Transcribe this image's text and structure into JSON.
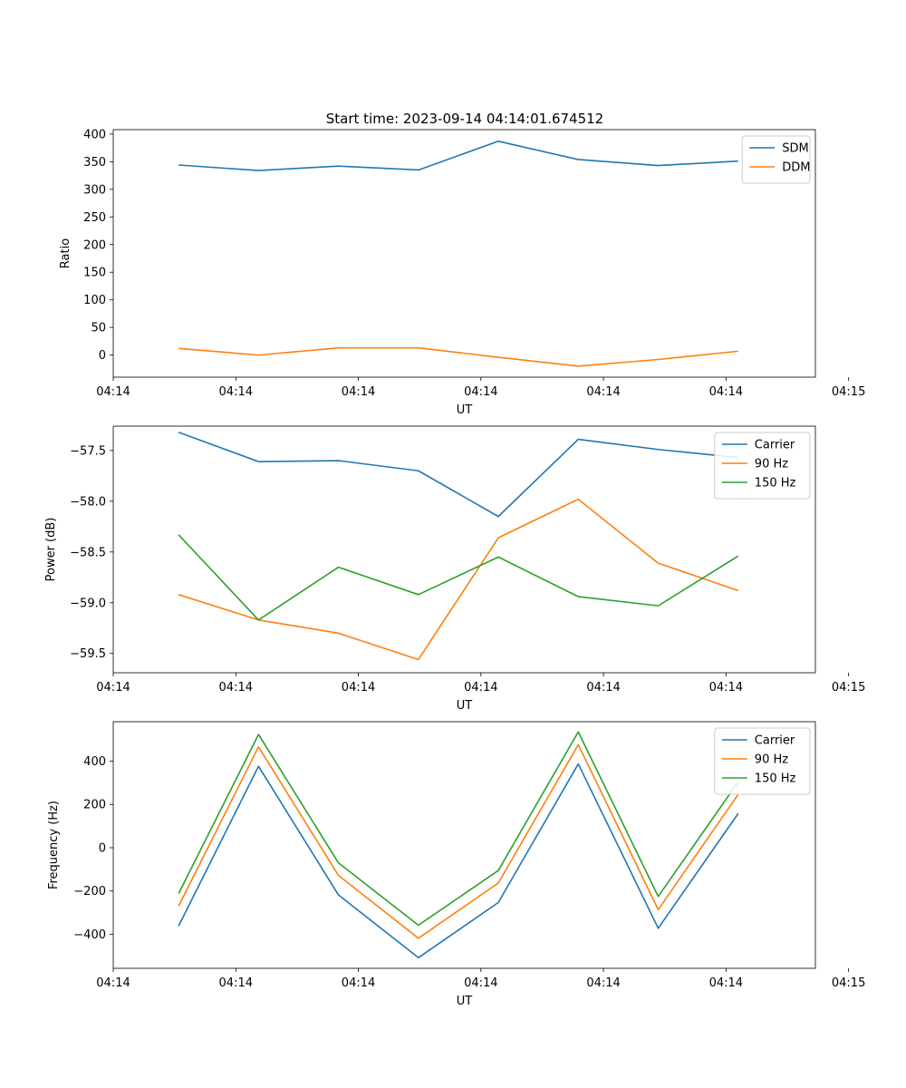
{
  "figure": {
    "title": "Start time: 2023-09-14 04:14:01.674512"
  },
  "colors": {
    "blue": "#1f77b4",
    "orange": "#ff7f0e",
    "green": "#2ca02c"
  },
  "chart_data": [
    {
      "type": "line",
      "title": "Start time: 2023-09-14 04:14:01.674512",
      "xlabel": "UT",
      "ylabel": "Ratio",
      "x": [
        1,
        2,
        3,
        4,
        5,
        6,
        7,
        8
      ],
      "xlim": [
        0.183,
        8.966
      ],
      "xticks": [
        0.183,
        1.716,
        3.249,
        4.782,
        6.315,
        7.848,
        9.381
      ],
      "xticklabels": [
        "04:14",
        "04:14",
        "04:14",
        "04:14",
        "04:14",
        "04:14",
        "04:15"
      ],
      "ylim": [
        -40,
        408
      ],
      "yticks": [
        0,
        50,
        100,
        150,
        200,
        250,
        300,
        350,
        400
      ],
      "yticklabels": [
        "0",
        "50",
        "100",
        "150",
        "200",
        "250",
        "300",
        "350",
        "400"
      ],
      "legend": "top-right",
      "series": [
        {
          "name": "SDM",
          "color": "#1f77b4",
          "values": [
            344,
            334,
            342,
            335,
            387,
            354,
            343,
            351
          ]
        },
        {
          "name": "DDM",
          "color": "#ff7f0e",
          "values": [
            12,
            0,
            13,
            13,
            -4,
            -20,
            -8,
            7
          ]
        }
      ]
    },
    {
      "type": "line",
      "xlabel": "UT",
      "ylabel": "Power (dB)",
      "x": [
        1,
        2,
        3,
        4,
        5,
        6,
        7,
        8
      ],
      "xlim": [
        0.183,
        8.966
      ],
      "xticks": [
        0.183,
        1.716,
        3.249,
        4.782,
        6.315,
        7.848,
        9.381
      ],
      "xticklabels": [
        "04:14",
        "04:14",
        "04:14",
        "04:14",
        "04:14",
        "04:14",
        "04:15"
      ],
      "ylim": [
        -59.69,
        -57.26
      ],
      "yticks": [
        -59.5,
        -59.0,
        -58.5,
        -58.0,
        -57.5
      ],
      "yticklabels": [
        "−59.5",
        "−59.0",
        "−58.5",
        "−58.0",
        "−57.5"
      ],
      "legend": "top-right",
      "series": [
        {
          "name": "Carrier",
          "color": "#1f77b4",
          "values": [
            -57.32,
            -57.61,
            -57.6,
            -57.7,
            -58.15,
            -57.39,
            -57.49,
            -57.57
          ]
        },
        {
          "name": "90 Hz",
          "color": "#ff7f0e",
          "values": [
            -58.92,
            -59.17,
            -59.3,
            -59.56,
            -58.36,
            -57.98,
            -58.61,
            -58.88
          ]
        },
        {
          "name": "150 Hz",
          "color": "#2ca02c",
          "values": [
            -58.33,
            -59.17,
            -58.65,
            -58.92,
            -58.55,
            -58.94,
            -59.03,
            -58.54
          ]
        }
      ]
    },
    {
      "type": "line",
      "xlabel": "UT",
      "ylabel": "Frequency (Hz)",
      "x": [
        1,
        2,
        3,
        4,
        5,
        6,
        7,
        8
      ],
      "xlim": [
        0.183,
        8.966
      ],
      "xticks": [
        0.183,
        1.716,
        3.249,
        4.782,
        6.315,
        7.848,
        9.381
      ],
      "xticklabels": [
        "04:14",
        "04:14",
        "04:14",
        "04:14",
        "04:14",
        "04:14",
        "04:15"
      ],
      "ylim": [
        -557,
        582
      ],
      "yticks": [
        -400,
        -200,
        0,
        200,
        400
      ],
      "yticklabels": [
        "−400",
        "−200",
        "0",
        "200",
        "400"
      ],
      "legend": "top-right",
      "series": [
        {
          "name": "Carrier",
          "color": "#1f77b4",
          "values": [
            -362,
            376,
            -218,
            -508,
            -253,
            387,
            -372,
            158
          ]
        },
        {
          "name": "90 Hz",
          "color": "#ff7f0e",
          "values": [
            -270,
            466,
            -128,
            -418,
            -163,
            476,
            -286,
            246
          ]
        },
        {
          "name": "150 Hz",
          "color": "#2ca02c",
          "values": [
            -212,
            523,
            -70,
            -358,
            -105,
            535,
            -225,
            304
          ]
        }
      ]
    }
  ]
}
